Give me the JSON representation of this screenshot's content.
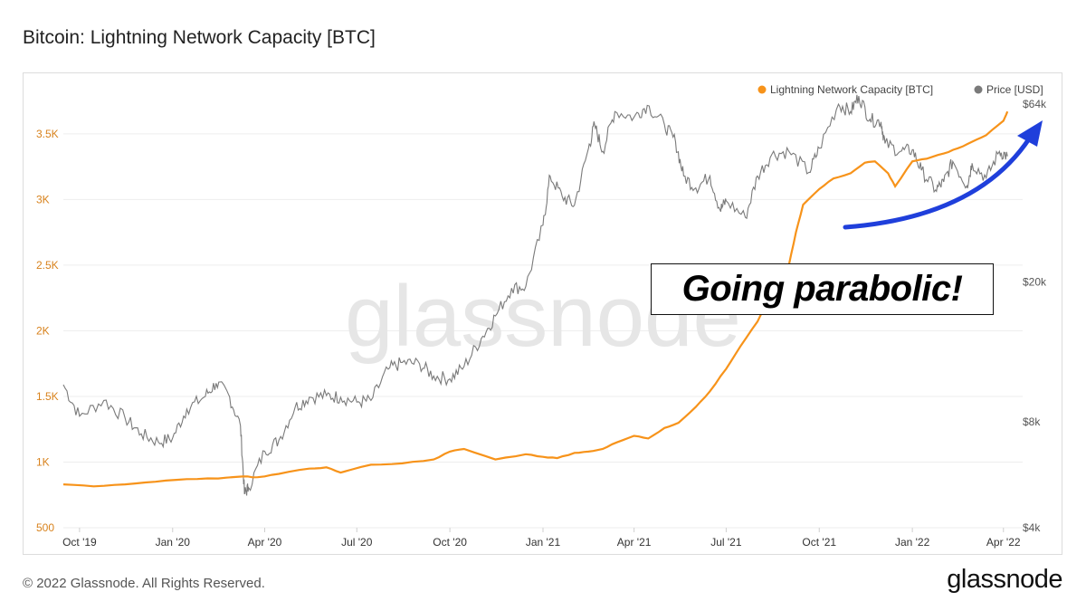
{
  "title": "Bitcoin: Lightning Network Capacity [BTC]",
  "footer": "© 2022 Glassnode. All Rights Reserved.",
  "brand": "glassnode",
  "watermark": "glassnode",
  "annotation": "Going parabolic!",
  "colors": {
    "capacity": "#f7931a",
    "price": "#7a7a7a",
    "arrow": "#1f3fdb"
  },
  "chart_data": {
    "type": "line",
    "title": "Bitcoin: Lightning Network Capacity [BTC]",
    "legend_placement": "top-right",
    "grid": true,
    "x_ticks": [
      "Oct '19",
      "Jan '20",
      "Apr '20",
      "Jul '20",
      "Oct '20",
      "Jan '21",
      "Apr '21",
      "Jul '21",
      "Oct '21",
      "Jan '22",
      "Apr '22"
    ],
    "x_range": [
      "2019-09-15",
      "2022-04-20"
    ],
    "y_left": {
      "label": "",
      "ticks": [
        "500",
        "1K",
        "1.5K",
        "2K",
        "2.5K",
        "3K",
        "3.5K"
      ],
      "tick_values": [
        500,
        1000,
        1500,
        2000,
        2500,
        3000,
        3500
      ],
      "range": [
        500,
        3830
      ]
    },
    "y_right": {
      "label": "",
      "scale": "log",
      "ticks": [
        "$4k",
        "$8k",
        "$20k",
        "$64k"
      ],
      "tick_values": [
        4000,
        8000,
        20000,
        64000
      ],
      "range": [
        4000,
        70000
      ]
    },
    "series": [
      {
        "name": "Lightning Network Capacity [BTC]",
        "axis": "left",
        "x": [
          "2019-09-15",
          "2019-10-15",
          "2019-11-15",
          "2019-12-15",
          "2020-01-15",
          "2020-02-15",
          "2020-03-10",
          "2020-03-25",
          "2020-04-15",
          "2020-05-15",
          "2020-06-01",
          "2020-06-15",
          "2020-07-15",
          "2020-08-15",
          "2020-09-15",
          "2020-10-01",
          "2020-10-15",
          "2020-11-15",
          "2020-12-15",
          "2021-01-01",
          "2021-01-15",
          "2021-02-01",
          "2021-02-15",
          "2021-03-01",
          "2021-03-15",
          "2021-04-01",
          "2021-04-15",
          "2021-05-01",
          "2021-05-15",
          "2021-06-01",
          "2021-06-15",
          "2021-07-01",
          "2021-07-15",
          "2021-08-01",
          "2021-08-15",
          "2021-09-01",
          "2021-09-08",
          "2021-09-15",
          "2021-10-01",
          "2021-10-15",
          "2021-11-01",
          "2021-11-15",
          "2021-11-25",
          "2021-12-08",
          "2021-12-15",
          "2022-01-01",
          "2022-01-15",
          "2022-02-01",
          "2022-02-15",
          "2022-03-01",
          "2022-03-15",
          "2022-04-01",
          "2022-04-05"
        ],
        "values": [
          830,
          815,
          830,
          850,
          870,
          875,
          890,
          885,
          910,
          950,
          960,
          920,
          980,
          990,
          1020,
          1080,
          1100,
          1020,
          1060,
          1040,
          1030,
          1070,
          1080,
          1100,
          1150,
          1200,
          1180,
          1260,
          1300,
          1420,
          1540,
          1710,
          1880,
          2070,
          2300,
          2500,
          2750,
          2960,
          3080,
          3160,
          3200,
          3280,
          3290,
          3200,
          3100,
          3290,
          3310,
          3350,
          3390,
          3440,
          3490,
          3600,
          3670
        ]
      },
      {
        "name": "Price [USD]",
        "axis": "right",
        "x": [
          "2019-09-15",
          "2019-10-01",
          "2019-10-25",
          "2019-11-15",
          "2019-12-01",
          "2019-12-18",
          "2020-01-01",
          "2020-01-15",
          "2020-02-01",
          "2020-02-13",
          "2020-02-25",
          "2020-03-08",
          "2020-03-12",
          "2020-03-16",
          "2020-04-01",
          "2020-04-15",
          "2020-05-01",
          "2020-05-15",
          "2020-06-01",
          "2020-06-15",
          "2020-07-01",
          "2020-07-15",
          "2020-08-01",
          "2020-08-15",
          "2020-09-01",
          "2020-09-15",
          "2020-10-01",
          "2020-10-15",
          "2020-11-01",
          "2020-11-15",
          "2020-12-01",
          "2020-12-15",
          "2021-01-01",
          "2021-01-08",
          "2021-01-20",
          "2021-02-01",
          "2021-02-15",
          "2021-02-21",
          "2021-03-01",
          "2021-03-13",
          "2021-04-01",
          "2021-04-14",
          "2021-05-01",
          "2021-05-12",
          "2021-05-20",
          "2021-06-01",
          "2021-06-15",
          "2021-06-25",
          "2021-07-01",
          "2021-07-20",
          "2021-08-01",
          "2021-08-15",
          "2021-09-01",
          "2021-09-21",
          "2021-10-01",
          "2021-10-20",
          "2021-11-01",
          "2021-11-09",
          "2021-11-20",
          "2021-12-01",
          "2021-12-05",
          "2021-12-20",
          "2022-01-01",
          "2022-01-10",
          "2022-01-24",
          "2022-02-01",
          "2022-02-10",
          "2022-02-24",
          "2022-03-01",
          "2022-03-15",
          "2022-03-28",
          "2022-04-05"
        ],
        "values": [
          10200,
          8300,
          9200,
          8200,
          7400,
          7000,
          7200,
          8700,
          9400,
          10300,
          9600,
          7800,
          5000,
          5200,
          6600,
          7100,
          8800,
          9400,
          9500,
          9400,
          9100,
          9200,
          11300,
          11800,
          11700,
          10800,
          10600,
          11500,
          13800,
          16000,
          19200,
          19400,
          29000,
          40000,
          35000,
          33000,
          48000,
          56000,
          47000,
          61000,
          58800,
          63500,
          56000,
          50000,
          40000,
          37000,
          40000,
          32000,
          34000,
          30500,
          40000,
          46000,
          47000,
          41000,
          48000,
          64000,
          61000,
          67500,
          58000,
          57000,
          49500,
          47000,
          47500,
          41500,
          36500,
          38500,
          44000,
          37500,
          43500,
          39500,
          47000,
          45500
        ]
      }
    ]
  },
  "legend": {
    "capacity_label": "Lightning Network Capacity [BTC]",
    "price_label": "Price [USD]"
  }
}
